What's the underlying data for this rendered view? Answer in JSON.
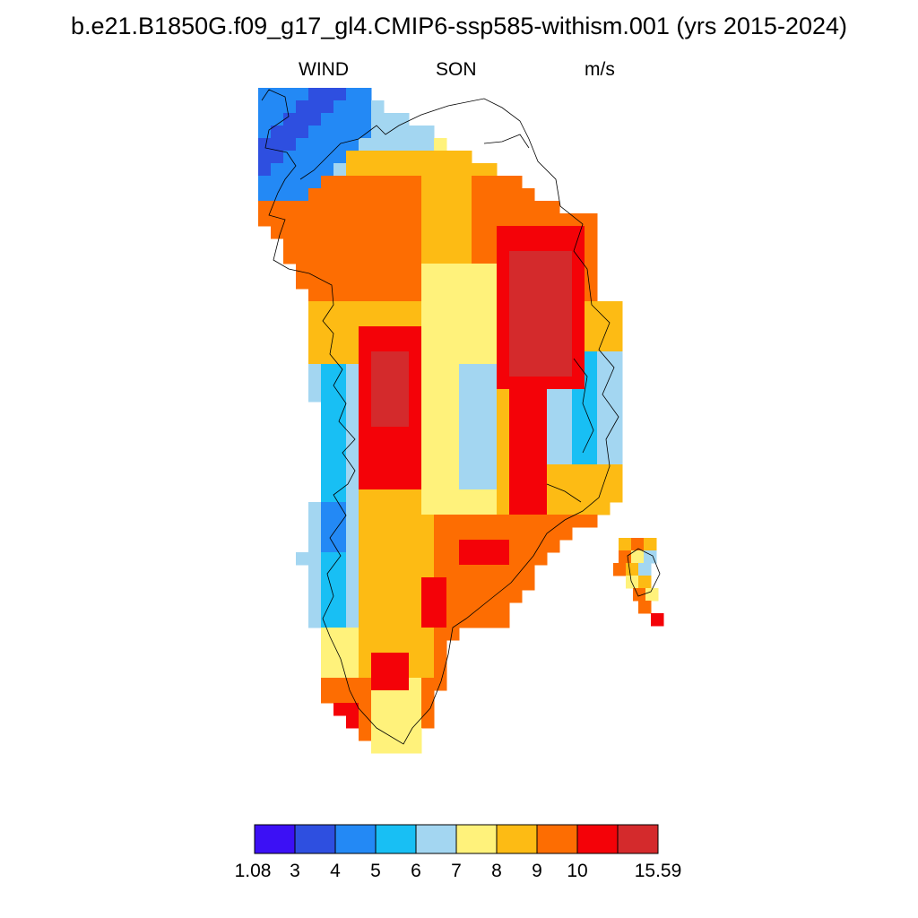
{
  "title": "b.e21.B1850G.f09_g17_gl4.CMIP6-ssp585-withism.001 (yrs 2015-2024)",
  "subtitle": {
    "variable": "WIND",
    "season": "SON",
    "units": "m/s"
  },
  "colorbar": {
    "labels": [
      "1.08",
      "3",
      "4",
      "5",
      "6",
      "7",
      "8",
      "9",
      "10",
      "15.59"
    ],
    "colors": [
      "#3c10f5",
      "#2e4fe0",
      "#2389f5",
      "#18bff4",
      "#a3d6f1",
      "#fff27b",
      "#fdbb14",
      "#fd6d02",
      "#f40208",
      "#d42a2c"
    ]
  },
  "chart_data": {
    "type": "heatmap",
    "title": "b.e21.B1850G.f09_g17_gl4.CMIP6-ssp585-withism.001 (yrs 2015-2024)",
    "variable": "WIND",
    "season": "SON",
    "units": "m/s",
    "range": [
      1.08,
      15.59
    ],
    "levels": [
      1.08,
      3,
      4,
      5,
      6,
      7,
      8,
      9,
      10,
      15.59
    ],
    "region": "Greenland",
    "value_pattern_from_coast_to_interior": [
      "3-5 (northwest corner)",
      "5-7 (coastal margins)",
      "7-9",
      "9-10",
      "10-15.59 (eastern interior maximum)"
    ]
  }
}
